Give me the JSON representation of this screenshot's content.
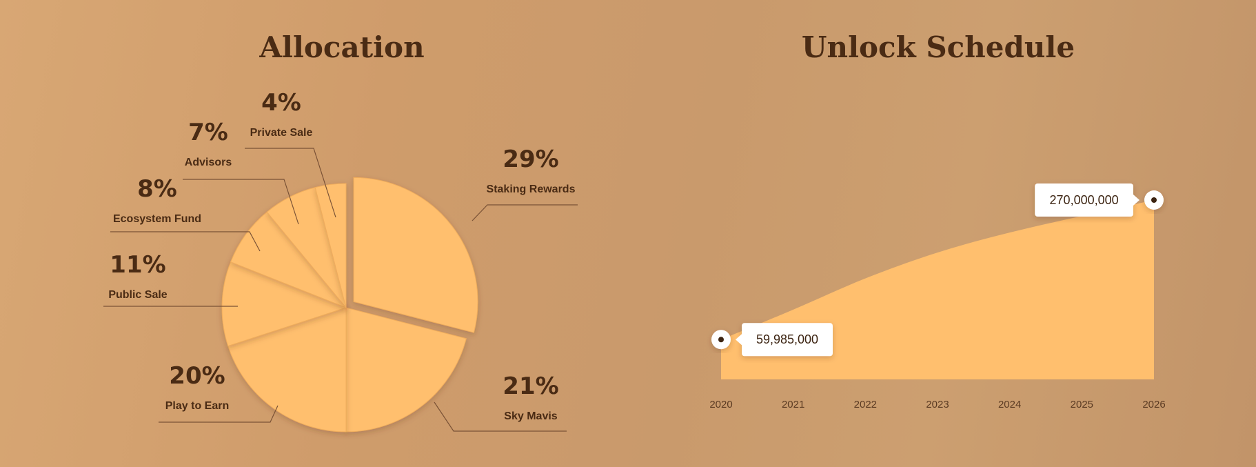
{
  "colors": {
    "fill": "#ffbf6e",
    "text": "#4a2b14",
    "leader": "#7a5236"
  },
  "chart_data": [
    {
      "type": "pie",
      "title": "Allocation",
      "slices": [
        {
          "label": "Staking Rewards",
          "value": 29,
          "display": "29%"
        },
        {
          "label": "Sky Mavis",
          "value": 21,
          "display": "21%"
        },
        {
          "label": "Play to Earn",
          "value": 20,
          "display": "20%"
        },
        {
          "label": "Public Sale",
          "value": 11,
          "display": "11%"
        },
        {
          "label": "Ecosystem Fund",
          "value": 8,
          "display": "8%"
        },
        {
          "label": "Advisors",
          "value": 7,
          "display": "7%"
        },
        {
          "label": "Private Sale",
          "value": 4,
          "display": "4%"
        }
      ]
    },
    {
      "type": "area",
      "title": "Unlock Schedule",
      "x": [
        "2020",
        "2021",
        "2022",
        "2023",
        "2024",
        "2025",
        "2026"
      ],
      "values": [
        59985000,
        105000000,
        152000000,
        191000000,
        221000000,
        246000000,
        270000000
      ],
      "ylim": [
        0,
        300000000
      ],
      "annotations": [
        {
          "x": "2020",
          "text": "59,985,000"
        },
        {
          "x": "2026",
          "text": "270,000,000"
        }
      ]
    }
  ]
}
